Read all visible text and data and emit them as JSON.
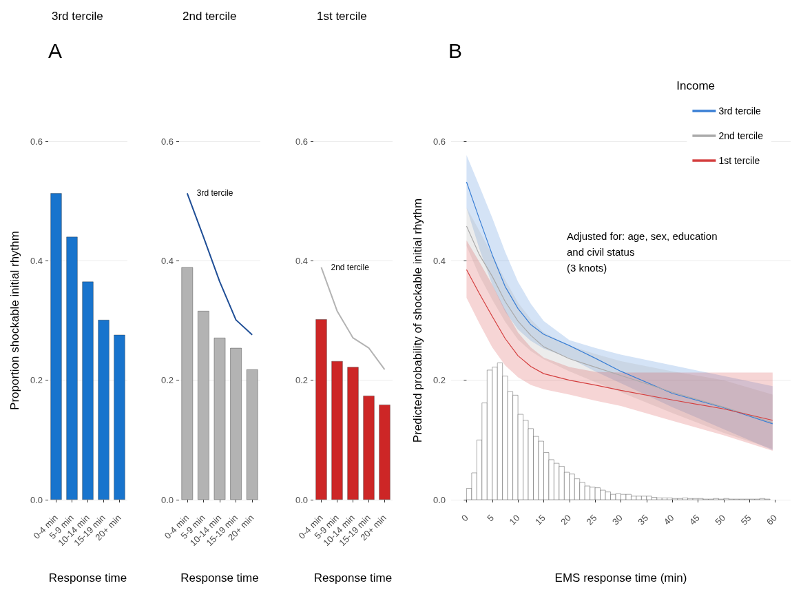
{
  "chart_data": [
    {
      "type": "bar",
      "title": "3rd tercile",
      "annotations": [
        "A"
      ],
      "categories": [
        "0-4 min",
        "5-9 min",
        "10-14 min",
        "15-19 min",
        "20+ min"
      ],
      "values": [
        0.513,
        0.44,
        0.365,
        0.301,
        0.276
      ],
      "color": "#1874cd",
      "xlabel": "Response time",
      "ylabel": "Proportion shockable initial rhythm",
      "ylim": [
        0,
        0.6
      ],
      "yticks": [
        {
          "value": 0,
          "label": "0.0"
        },
        {
          "value": 0.2,
          "label": "0.2"
        },
        {
          "value": 0.4,
          "label": "0.4"
        },
        {
          "value": 0.6,
          "label": "0.6"
        }
      ],
      "grid": "y"
    },
    {
      "type": "bar",
      "title": "2nd tercile",
      "categories": [
        "0-4 min",
        "5-9 min",
        "10-14 min",
        "15-19 min",
        "20+ min"
      ],
      "series": [
        {
          "type": "bar",
          "color": "#b3b3b3",
          "values": [
            0.389,
            0.316,
            0.271,
            0.254,
            0.218
          ]
        },
        {
          "type": "line",
          "name": "3rd tercile",
          "color": "#1f4e96",
          "values": [
            0.513,
            0.44,
            0.365,
            0.301,
            0.276
          ]
        }
      ],
      "xlabel": "Response time",
      "ylim": [
        0,
        0.6
      ],
      "yticks": [
        {
          "value": 0,
          "label": "0.0"
        },
        {
          "value": 0.2,
          "label": "0.2"
        },
        {
          "value": 0.4,
          "label": "0.4"
        },
        {
          "value": 0.6,
          "label": "0.6"
        }
      ],
      "grid": "y"
    },
    {
      "type": "bar",
      "title": "1st tercile",
      "categories": [
        "0-4 min",
        "5-9 min",
        "10-14 min",
        "15-19 min",
        "20+ min"
      ],
      "series": [
        {
          "type": "bar",
          "color": "#cd2626",
          "values": [
            0.302,
            0.232,
            0.222,
            0.174,
            0.159
          ]
        },
        {
          "type": "line",
          "name": "2nd tercile",
          "color": "#b3b3b3",
          "values": [
            0.389,
            0.316,
            0.271,
            0.254,
            0.218
          ]
        }
      ],
      "xlabel": "Response time",
      "ylim": [
        0,
        0.6
      ],
      "yticks": [
        {
          "value": 0,
          "label": "0.0"
        },
        {
          "value": 0.2,
          "label": "0.2"
        },
        {
          "value": 0.4,
          "label": "0.4"
        },
        {
          "value": 0.6,
          "label": "0.6"
        }
      ],
      "grid": "y"
    },
    {
      "type": "line",
      "annotations": [
        "B",
        "Adjusted for: age, sex, education\nand civil status\n(3 knots)"
      ],
      "xlabel": "EMS response time (min)",
      "ylabel": "Predicted probability of shockable initial rhythm",
      "legend_title": "Income",
      "legend": "top right",
      "grid": "y",
      "xlim": [
        -3,
        63
      ],
      "xticks": [
        0,
        5,
        10,
        15,
        20,
        25,
        30,
        35,
        40,
        45,
        50,
        55,
        60
      ],
      "ylim": [
        0,
        0.6
      ],
      "yticks": [
        {
          "value": 0,
          "label": "0.0"
        },
        {
          "value": 0.2,
          "label": "0.2"
        },
        {
          "value": 0.4,
          "label": "0.4"
        },
        {
          "value": 0.6,
          "label": "0.6"
        }
      ],
      "series": [
        {
          "type": "histogram",
          "color": "#ffffff",
          "bins": [
            0,
            1,
            2,
            3,
            4,
            5,
            6,
            7,
            8,
            9,
            10,
            11,
            12,
            13,
            14,
            15,
            16,
            17,
            18,
            19,
            20,
            21,
            22,
            23,
            24,
            25,
            26,
            27,
            28,
            29,
            30,
            31,
            32,
            33,
            34,
            35,
            36,
            37,
            38,
            39,
            40,
            41,
            42,
            43,
            44,
            45,
            46,
            47,
            48,
            49,
            50,
            51,
            52,
            53,
            54,
            55,
            56,
            57,
            58,
            59
          ],
          "values": [
            0.019,
            0.045,
            0.1,
            0.162,
            0.217,
            0.222,
            0.229,
            0.207,
            0.181,
            0.175,
            0.143,
            0.133,
            0.119,
            0.106,
            0.098,
            0.079,
            0.067,
            0.061,
            0.056,
            0.046,
            0.043,
            0.035,
            0.029,
            0.023,
            0.021,
            0.02,
            0.016,
            0.013,
            0.009,
            0.01,
            0.009,
            0.009,
            0.006,
            0.006,
            0.006,
            0.006,
            0.004,
            0.003,
            0.003,
            0.003,
            0.002,
            0.002,
            0.003,
            0.002,
            0.002,
            0.002,
            0.001,
            0.001,
            0.002,
            0.001,
            0.002,
            0.001,
            0.001,
            0.001,
            0.001,
            0.001,
            0.001,
            0.002,
            0.001
          ]
        },
        {
          "name": "3rd tercile",
          "color": "#3a7fd5",
          "x": [
            0,
            2.5,
            5,
            7.5,
            10,
            12.5,
            15,
            20,
            25,
            30,
            40,
            50,
            59.5
          ],
          "values": [
            0.532,
            0.47,
            0.41,
            0.357,
            0.32,
            0.293,
            0.277,
            0.258,
            0.237,
            0.215,
            0.178,
            0.154,
            0.127
          ],
          "lower": [
            0.489,
            0.42,
            0.36,
            0.315,
            0.285,
            0.266,
            0.253,
            0.237,
            0.215,
            0.195,
            0.155,
            0.118,
            0.083
          ],
          "upper": [
            0.577,
            0.525,
            0.472,
            0.415,
            0.365,
            0.328,
            0.299,
            0.267,
            0.254,
            0.243,
            0.225,
            0.207,
            0.19
          ]
        },
        {
          "name": "2nd tercile",
          "color": "#aaaaaa",
          "x": [
            0,
            2.5,
            5,
            7.5,
            10,
            12.5,
            15,
            20,
            25,
            30,
            40,
            50,
            59.5
          ],
          "values": [
            0.458,
            0.41,
            0.374,
            0.332,
            0.299,
            0.275,
            0.256,
            0.236,
            0.222,
            0.208,
            0.18,
            0.155,
            0.129
          ],
          "lower": [
            0.425,
            0.375,
            0.335,
            0.298,
            0.268,
            0.249,
            0.235,
            0.215,
            0.197,
            0.18,
            0.145,
            0.112,
            0.085
          ],
          "upper": [
            0.489,
            0.45,
            0.41,
            0.368,
            0.33,
            0.302,
            0.28,
            0.258,
            0.244,
            0.232,
            0.215,
            0.2,
            0.176
          ]
        },
        {
          "name": "1st tercile",
          "color": "#d43f3f",
          "x": [
            0,
            2.5,
            5,
            7.5,
            10,
            12.5,
            15,
            20,
            25,
            30,
            40,
            50,
            59.5
          ],
          "values": [
            0.385,
            0.345,
            0.307,
            0.27,
            0.241,
            0.223,
            0.211,
            0.2,
            0.192,
            0.183,
            0.167,
            0.152,
            0.133
          ],
          "lower": [
            0.338,
            0.295,
            0.255,
            0.225,
            0.205,
            0.192,
            0.185,
            0.176,
            0.166,
            0.157,
            0.132,
            0.108,
            0.082
          ],
          "upper": [
            0.434,
            0.398,
            0.36,
            0.318,
            0.28,
            0.255,
            0.238,
            0.222,
            0.214,
            0.213,
            0.213,
            0.213,
            0.213
          ]
        }
      ]
    }
  ]
}
